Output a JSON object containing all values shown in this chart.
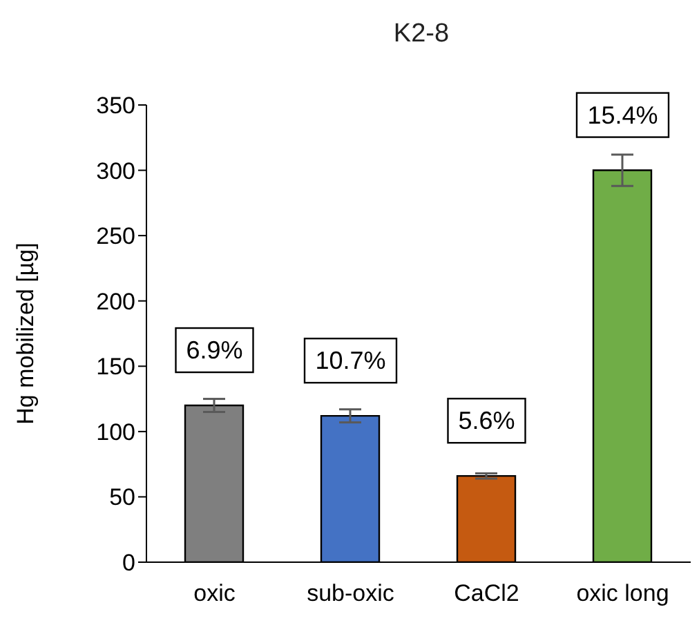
{
  "chart_data": {
    "type": "bar",
    "title": "K2-8",
    "ylabel": "Hg mobilized [µg]",
    "categories": [
      "oxic",
      "sub-oxic",
      "CaCl2",
      "oxic long"
    ],
    "values": [
      120,
      112,
      66,
      300
    ],
    "colors": [
      "#7f7f7f",
      "#4472c4",
      "#c55a11",
      "#70ad47"
    ],
    "errors": [
      5,
      5,
      2,
      12
    ],
    "ylim": [
      0,
      350
    ],
    "yticks": [
      0,
      50,
      100,
      150,
      200,
      250,
      300,
      350
    ],
    "annotations": [
      "6.9%",
      "10.7%",
      "5.6%",
      "15.4%"
    ]
  }
}
